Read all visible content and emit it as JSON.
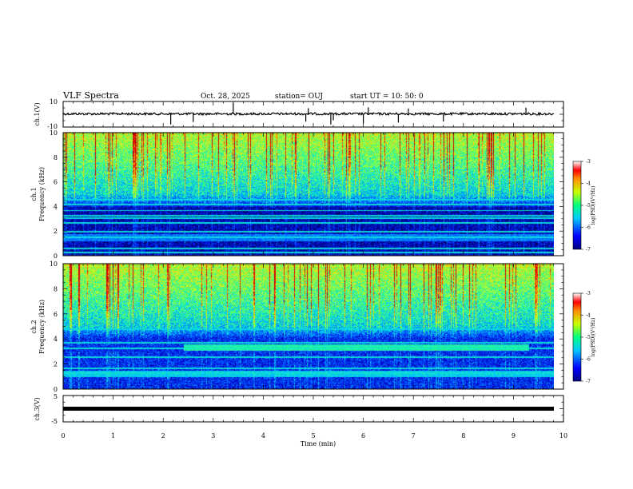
{
  "header": {
    "title": "VLF Spectra",
    "date": "Oct. 28, 2025",
    "station": "station= OUJ",
    "start_ut": "start  UT =   10: 50: 0"
  },
  "chart_data": [
    {
      "type": "line",
      "panel": "ch1-waveform",
      "ylabel": "ch.1(V)",
      "ylim": [
        -10,
        10
      ],
      "y_tick_labels": [
        "10",
        "-10"
      ],
      "baseline": 0,
      "noise_amplitude": 1.2,
      "spikes_at_min": [
        2.15,
        2.6,
        3.4,
        4.85,
        4.9,
        5.35,
        5.4,
        6.0,
        6.1,
        6.7,
        6.9,
        7.6,
        9.25
      ]
    },
    {
      "type": "heatmap",
      "panel": "ch1-spectrogram",
      "ylabel": "Frequency (kHz)",
      "channel_label": "ch.1",
      "ylim": [
        0,
        10
      ],
      "y_tick_labels": [
        "0",
        "2",
        "4",
        "6",
        "8",
        "10"
      ],
      "xlim": [
        0,
        10
      ],
      "colorbar": {
        "label": "log(PSD)(V²/Hz)",
        "range": [
          -7,
          -3
        ],
        "tick_labels": [
          "-3",
          "-4",
          "-5",
          "-6",
          "-7"
        ]
      },
      "bands_khz": [
        0.3,
        0.6,
        1.5,
        2.0,
        2.7,
        3.1,
        3.3,
        3.7,
        4.2,
        4.6
      ]
    },
    {
      "type": "heatmap",
      "panel": "ch2-spectrogram",
      "ylabel": "Frequency (kHz)",
      "channel_label": "ch.2",
      "ylim": [
        0,
        10
      ],
      "y_tick_labels": [
        "0",
        "2",
        "4",
        "6",
        "8",
        "10"
      ],
      "xlim": [
        0,
        10
      ],
      "colorbar": {
        "label": "log(PSD)(V²/Hz)",
        "range": [
          -7,
          -3
        ],
        "tick_labels": [
          "-3",
          "-4",
          "-5",
          "-6",
          "-7"
        ]
      },
      "bands_khz": [
        1.3,
        1.7,
        2.6,
        3.3,
        3.7,
        4.8
      ],
      "emission_band": {
        "start_min": 2.4,
        "end_min": 9.3,
        "low_khz": 3.1,
        "high_khz": 3.6
      }
    },
    {
      "type": "line",
      "panel": "ch3-waveform",
      "ylabel": "ch.3(V)",
      "ylim": [
        -5,
        5
      ],
      "y_tick_labels": [
        "5",
        "-5"
      ],
      "baseline": 0,
      "xlabel": "Time  (min)",
      "x_tick_labels": [
        "0",
        "1",
        "2",
        "3",
        "4",
        "5",
        "6",
        "7",
        "8",
        "9",
        "10"
      ]
    }
  ]
}
